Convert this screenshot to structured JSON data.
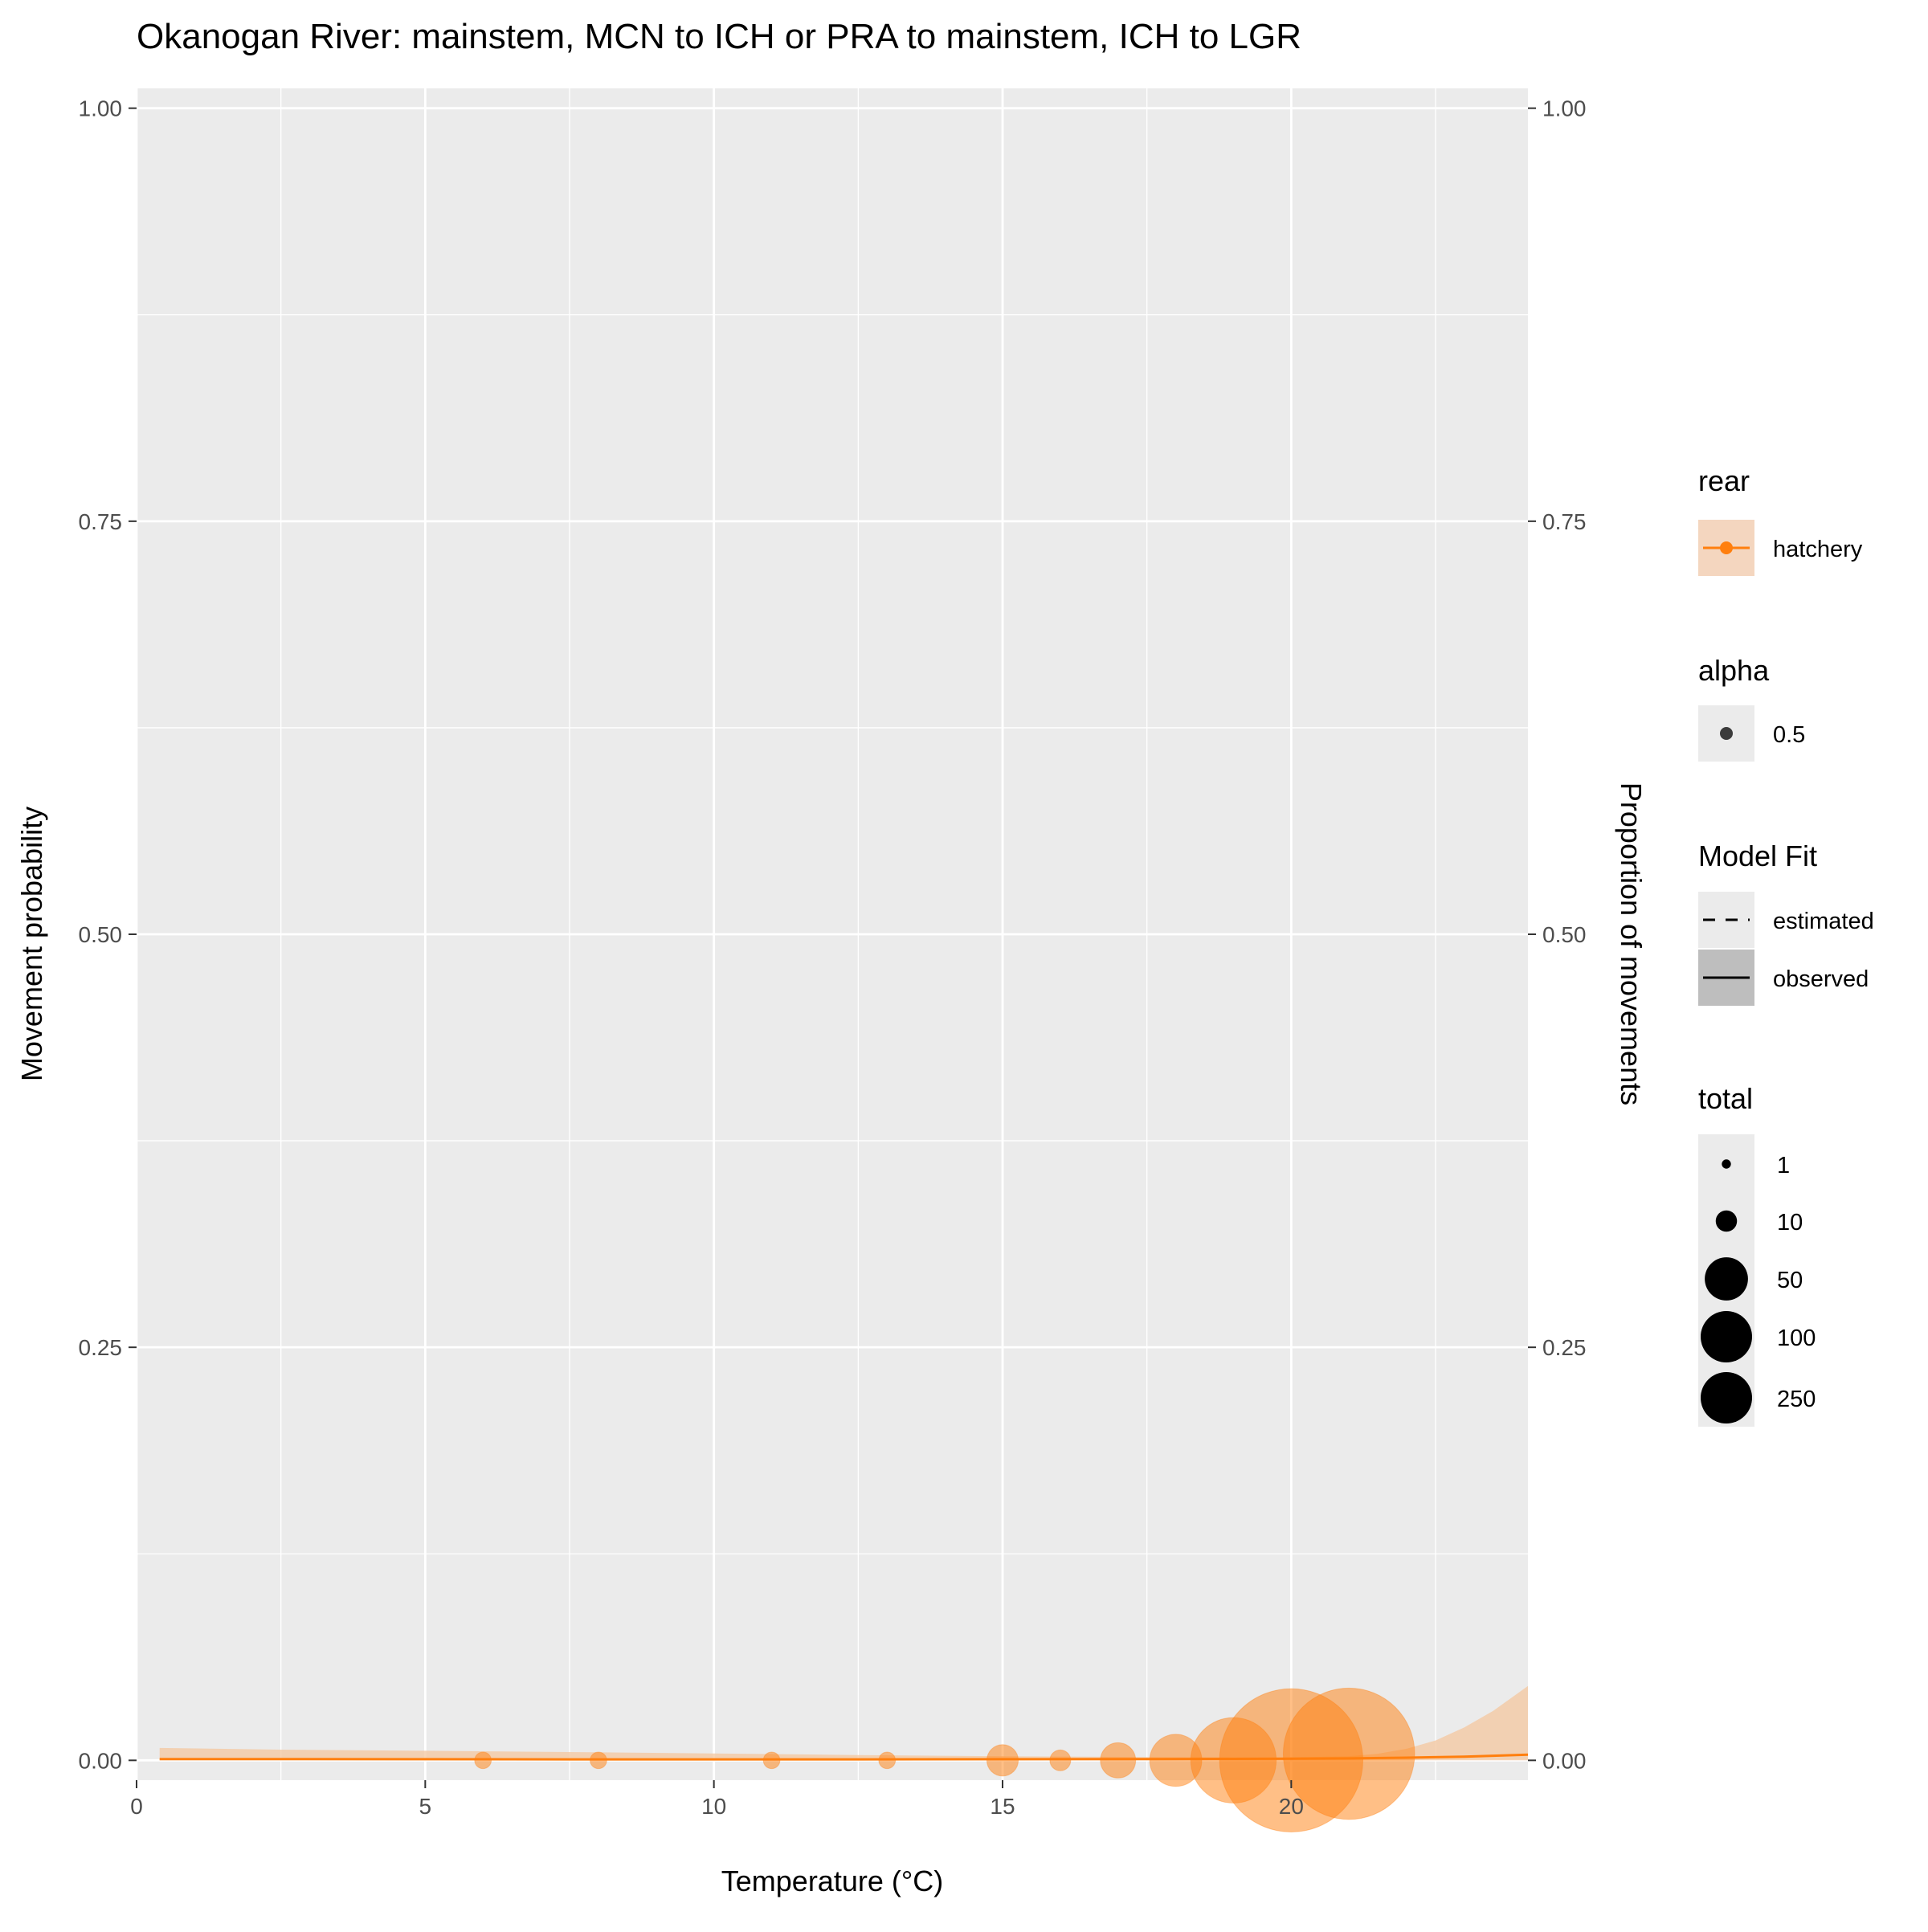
{
  "chart_data": {
    "type": "scatter",
    "title": "Okanogan River: mainstem, MCN to ICH or PRA to mainstem, ICH to LGR",
    "xlabel": "Temperature (°C)",
    "ylabel": "Movement probability",
    "y2label": "Proportion of movements",
    "xlim": [
      0,
      24.1
    ],
    "ylim": [
      -0.012,
      1.012
    ],
    "x_ticks": [
      0,
      5,
      10,
      15,
      20
    ],
    "x_tick_labels": [
      "0",
      "5",
      "10",
      "15",
      "20"
    ],
    "y_ticks": [
      0,
      0.25,
      0.5,
      0.75,
      1
    ],
    "y_tick_labels": [
      "0.00",
      "0.25",
      "0.50",
      "0.75",
      "1.00"
    ],
    "grid": true,
    "legend_placement": "right",
    "colors": {
      "hatchery": "#ff7f0e",
      "ribbon": "#f4c9a4",
      "panel": "#ebebeb",
      "grid": "#ffffff",
      "key_bg": "#ebebeb",
      "key_bg_observed": "#bebebe"
    },
    "series": [
      {
        "name": "hatchery",
        "estimated_fit": {
          "x": [
            0.4,
            2.5,
            5,
            7.5,
            10,
            12.5,
            15,
            17.5,
            19,
            20,
            21,
            22,
            23,
            24.1
          ],
          "y": [
            0.0008,
            0.0008,
            0.0007,
            0.0006,
            0.0006,
            0.0006,
            0.0007,
            0.0008,
            0.0009,
            0.001,
            0.0012,
            0.0016,
            0.0022,
            0.0034
          ]
        },
        "ribbon": {
          "x": [
            0.4,
            2.5,
            5,
            7.5,
            10,
            12.5,
            15,
            17.5,
            19,
            20,
            21,
            21.5,
            22,
            22.5,
            23,
            23.5,
            24.1
          ],
          "lower": [
            0,
            0,
            0,
            0,
            0,
            0,
            0,
            0,
            0,
            0,
            0,
            0,
            0,
            0,
            0,
            0,
            0
          ],
          "upper": [
            0.0075,
            0.0065,
            0.0058,
            0.005,
            0.0042,
            0.0032,
            0.0025,
            0.002,
            0.0018,
            0.0018,
            0.0025,
            0.004,
            0.007,
            0.012,
            0.02,
            0.03,
            0.045
          ]
        },
        "observed": [
          {
            "x": 6,
            "y": 0,
            "total": 1
          },
          {
            "x": 8,
            "y": 0,
            "total": 1
          },
          {
            "x": 11,
            "y": 0,
            "total": 1
          },
          {
            "x": 13,
            "y": 0,
            "total": 1
          },
          {
            "x": 15,
            "y": 0,
            "total": 6
          },
          {
            "x": 16,
            "y": 0,
            "total": 2
          },
          {
            "x": 17,
            "y": 0,
            "total": 8
          },
          {
            "x": 18,
            "y": 0,
            "total": 20
          },
          {
            "x": 19,
            "y": 0,
            "total": 60
          },
          {
            "x": 20,
            "y": 0,
            "total": 180
          },
          {
            "x": 21,
            "y": 0.004,
            "total": 150
          }
        ]
      }
    ],
    "legend": {
      "rear": {
        "title": "rear",
        "items": [
          "hatchery"
        ]
      },
      "alpha": {
        "title": "alpha",
        "items": [
          "0.5"
        ]
      },
      "model_fit": {
        "title": "Model Fit",
        "items": [
          "estimated",
          "observed"
        ]
      },
      "total": {
        "title": "total",
        "items": [
          1,
          10,
          50,
          100,
          250
        ],
        "labels": [
          "1",
          "10",
          "50",
          "100",
          "250"
        ]
      }
    }
  }
}
